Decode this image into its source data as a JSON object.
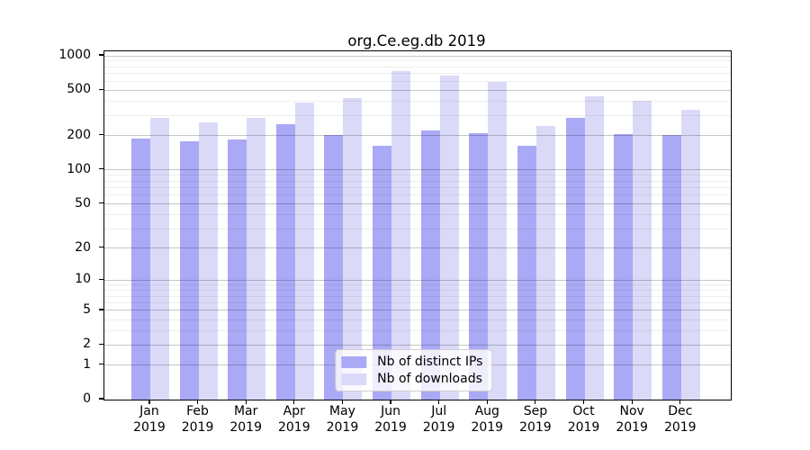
{
  "chart_data": {
    "type": "bar",
    "title": "org.Ce.eg.db 2019",
    "categories": [
      "Jan",
      "Feb",
      "Mar",
      "Apr",
      "May",
      "Jun",
      "Jul",
      "Aug",
      "Sep",
      "Oct",
      "Nov",
      "Dec"
    ],
    "x_tick_year": "2019",
    "series": [
      {
        "name": "Nb of distinct IPs",
        "color": "#a9a9f5",
        "values": [
          188,
          178,
          186,
          251,
          203,
          163,
          221,
          212,
          162,
          288,
          207,
          203
        ]
      },
      {
        "name": "Nb of downloads",
        "color": "#dadaf8",
        "values": [
          285,
          264,
          285,
          387,
          430,
          740,
          669,
          597,
          242,
          445,
          401,
          336
        ]
      }
    ],
    "xlabel": "",
    "ylabel": "",
    "yscale": "log1p",
    "ylim": [
      0,
      1095
    ],
    "y_tick_labels": [
      "1000",
      "500",
      "200",
      "100",
      "50",
      "20",
      "10",
      "5",
      "2",
      "1",
      "0"
    ],
    "y_tick_values": [
      1000,
      500,
      200,
      100,
      50,
      20,
      10,
      5,
      2,
      1,
      0
    ],
    "y_minor_gridlines": [
      900,
      800,
      700,
      600,
      400,
      300,
      90,
      80,
      70,
      60,
      40,
      30,
      9,
      8,
      7,
      6,
      4,
      3
    ],
    "grid": true,
    "grid_over_bars": true,
    "legend_position": "lower center",
    "background_color": "#ffffff",
    "spine_color": "#000000"
  }
}
